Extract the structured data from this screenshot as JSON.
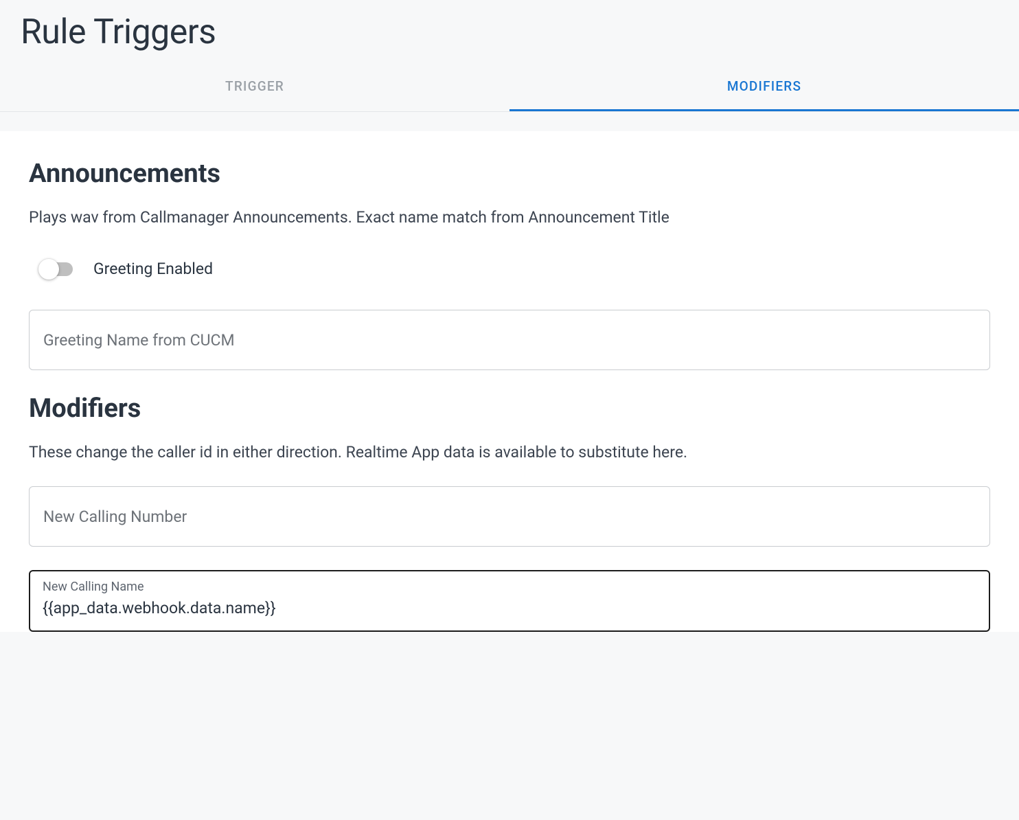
{
  "header": {
    "title": "Rule Triggers",
    "tabs": {
      "trigger": "TRIGGER",
      "modifiers": "MODIFIERS"
    }
  },
  "announcements": {
    "title": "Announcements",
    "description": "Plays wav from Callmanager Announcements. Exact name match from Announcement Title",
    "greeting_toggle_label": "Greeting Enabled",
    "greeting_toggle_on": false,
    "greeting_name_placeholder": "Greeting Name from CUCM",
    "greeting_name_value": ""
  },
  "modifiers": {
    "title": "Modifiers",
    "description": "These change the caller id in either direction. Realtime App data is available to substitute here.",
    "new_calling_number_placeholder": "New Calling Number",
    "new_calling_number_value": "",
    "new_calling_name_label": "New Calling Name",
    "new_calling_name_value": "{{app_data.webhook.data.name}}"
  },
  "colors": {
    "accent": "#1976d2",
    "text_primary": "#2a3440",
    "text_muted": "#9aa0a6",
    "border": "#c9ccd0",
    "focus_border": "#1c1c1c",
    "page_bg": "#f7f8f9",
    "content_bg": "#ffffff",
    "toggle_track": "#bfbfbf",
    "toggle_knob": "#ffffff"
  }
}
